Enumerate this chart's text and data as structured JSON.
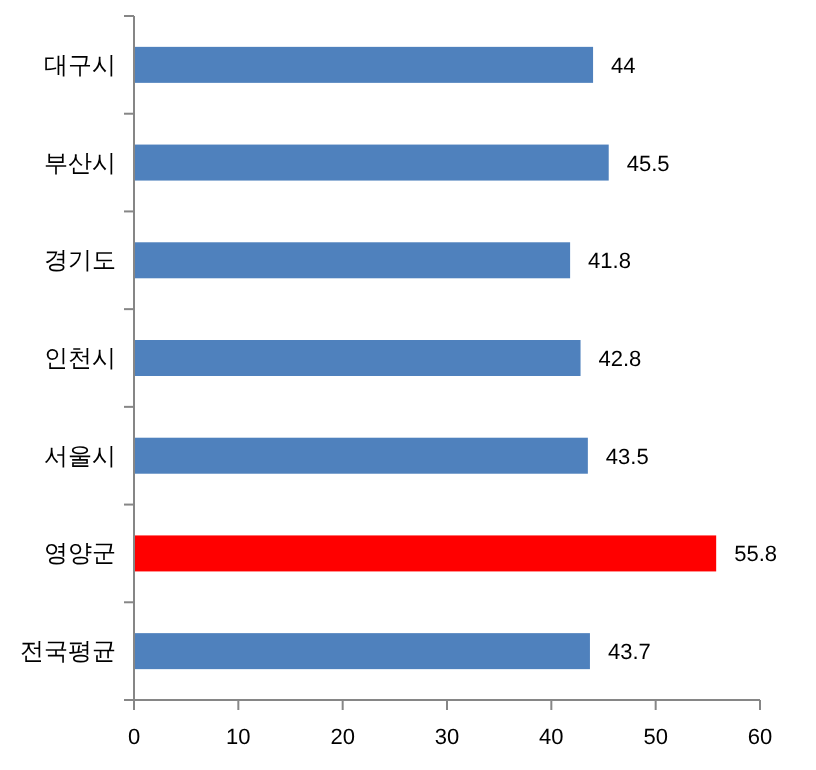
{
  "chart_data": {
    "type": "bar",
    "orientation": "horizontal",
    "categories": [
      "대구시",
      "부산시",
      "경기도",
      "인천시",
      "서울시",
      "영양군",
      "전국평균"
    ],
    "values": [
      44,
      45.5,
      41.8,
      42.8,
      43.5,
      55.8,
      43.7
    ],
    "colors": [
      "#4f81bd",
      "#4f81bd",
      "#4f81bd",
      "#4f81bd",
      "#4f81bd",
      "#ff0000",
      "#4f81bd"
    ],
    "xlim": [
      0,
      60
    ],
    "xticks": [
      0,
      10,
      20,
      30,
      40,
      50,
      60
    ],
    "data_labels": true
  }
}
